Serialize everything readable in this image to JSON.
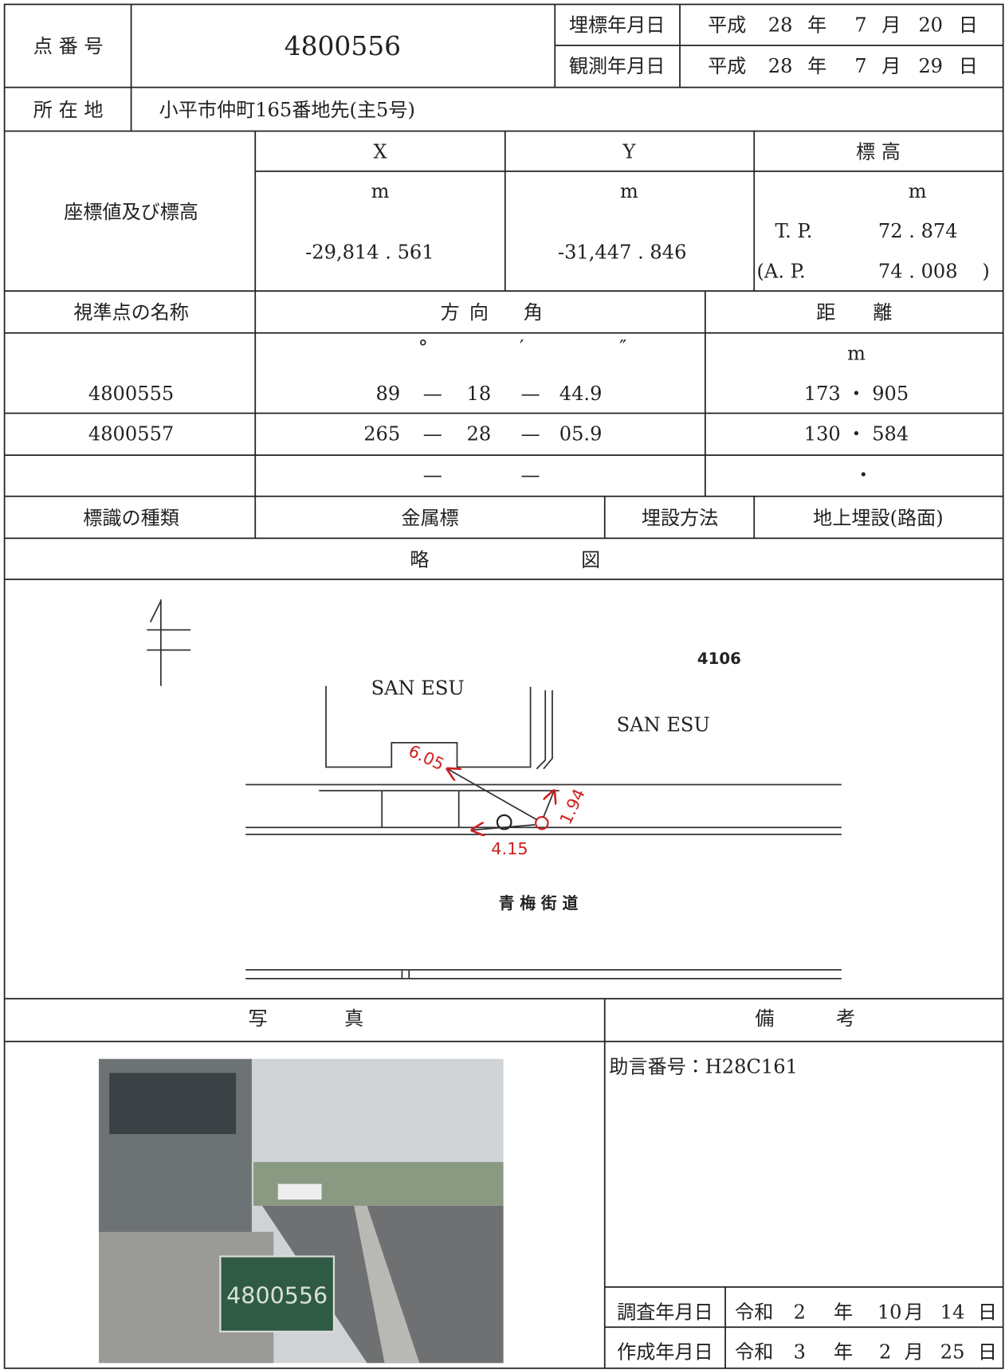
{
  "header": {
    "point_label": "点 番 号",
    "point_number": "4800556",
    "burial_label": "埋標年月日",
    "observation_label": "観測年月日",
    "burial_date": {
      "era": "平成",
      "year": "28",
      "year_unit": "年",
      "month": "7",
      "month_unit": "月",
      "day": "20",
      "day_unit": "日"
    },
    "observation_date": {
      "era": "平成",
      "year": "28",
      "year_unit": "年",
      "month": "7",
      "month_unit": "月",
      "day": "29",
      "day_unit": "日"
    }
  },
  "location": {
    "label": "所 在 地",
    "value": "小平市仲町165番地先(主5号)"
  },
  "coordinates": {
    "label": "座標値及び標高",
    "x_header": "X",
    "y_header": "Y",
    "height_header": "標 高",
    "x_unit": "m",
    "y_unit": "m",
    "height_unit": "m",
    "x_value": "-29,814 . 561",
    "y_value": "-31,447 . 846",
    "tp_label": "T. P.",
    "tp_value": "72 . 874",
    "ap_label": "(A. P.",
    "ap_value": "74 . 008",
    "ap_close": ")"
  },
  "sighting": {
    "name_header": "視準点の名称",
    "direction_header": [
      "方",
      "向",
      "角"
    ],
    "distance_header": [
      "距",
      "離"
    ],
    "degree_unit": "°",
    "minute_unit": "′",
    "second_unit": "″",
    "distance_unit": "m",
    "separator": "—",
    "empty_distance": "・",
    "rows": [
      {
        "name": "4800555",
        "degrees": "89",
        "minutes": "18",
        "seconds": "44.9",
        "distance": "173 ・ 905"
      },
      {
        "name": "4800557",
        "degrees": "265",
        "minutes": "28",
        "seconds": "05.9",
        "distance": "130 ・ 584"
      }
    ]
  },
  "marker": {
    "type_label": "標識の種類",
    "type_value": "金属標",
    "method_label": "埋設方法",
    "method_value": "地上埋設(路面)"
  },
  "sketch": {
    "header": [
      "略",
      "図"
    ],
    "building_1": "SAN ESU",
    "building_2": "SAN ESU",
    "lot_number": "4106",
    "distance_1": "6.05",
    "distance_2": "1.94",
    "distance_3": "4.15",
    "road_name": "青 梅 街 道"
  },
  "photo": {
    "header": [
      "写",
      "真"
    ],
    "board_number": "4800556"
  },
  "remarks": {
    "header": [
      "備",
      "考"
    ],
    "advice_number": "助言番号：H28C161"
  },
  "survey_date": {
    "label": "調査年月日",
    "era": "令和",
    "year": "2",
    "year_unit": "年",
    "month": "10",
    "month_unit": "月",
    "day": "14",
    "day_unit": "日"
  },
  "created_date": {
    "label": "作成年月日",
    "era": "令和",
    "year": "3",
    "year_unit": "年",
    "month": "2",
    "month_unit": "月",
    "day": "25",
    "day_unit": "日"
  }
}
